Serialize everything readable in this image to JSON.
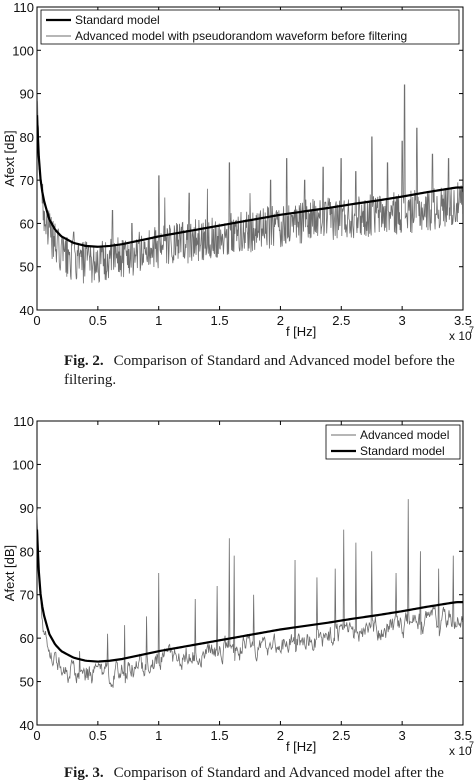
{
  "figures": [
    {
      "caption_label": "Fig. 2.",
      "caption_text": "Comparison of Standard and Advanced model before the filtering."
    },
    {
      "caption_label": "Fig. 3.",
      "caption_text": "Comparison of Standard and Advanced model after the"
    }
  ],
  "chart_data": [
    {
      "type": "line",
      "title": "",
      "xlabel": "f [Hz]",
      "ylabel": "Afext [dB]",
      "x_multiplier_label": "x 10",
      "x_multiplier_exponent": "7",
      "xlim": [
        0,
        3.5
      ],
      "ylim": [
        40,
        110
      ],
      "x_unit_scale": 10000000,
      "xticks": [
        "0",
        "0.5",
        "1",
        "1.5",
        "2",
        "2.5",
        "3",
        "3.5"
      ],
      "yticks": [
        "40",
        "50",
        "60",
        "70",
        "80",
        "90",
        "100",
        "110"
      ],
      "grid": false,
      "legend_position": "top",
      "series": [
        {
          "name": "Standard model",
          "color": "#000000",
          "style": "thick",
          "x": [
            0,
            0.02,
            0.05,
            0.1,
            0.15,
            0.2,
            0.3,
            0.4,
            0.5,
            0.6,
            0.7,
            0.8,
            1.0,
            1.2,
            1.4,
            1.6,
            1.8,
            2.0,
            2.2,
            2.4,
            2.6,
            2.8,
            3.0,
            3.2,
            3.4,
            3.45
          ],
          "y": [
            85,
            72,
            66,
            61,
            58.5,
            57,
            55.5,
            54.8,
            54.6,
            54.8,
            55.2,
            55.8,
            57,
            58,
            59,
            60,
            61,
            62,
            62.8,
            63.6,
            64.5,
            65.3,
            66.2,
            67.2,
            68.1,
            68.3
          ]
        },
        {
          "name": "Advanced model with pseudorandom waveform before filtering",
          "color": "#6e6e6e",
          "style": "noisy",
          "x": [
            0,
            0.02,
            0.05,
            0.1,
            0.15,
            0.2,
            0.3,
            0.4,
            0.5,
            0.6,
            0.7,
            0.8,
            1.0,
            1.2,
            1.4,
            1.6,
            1.8,
            2.0,
            2.2,
            2.4,
            2.6,
            2.8,
            3.0,
            3.2,
            3.4,
            3.45
          ],
          "y": [
            88,
            74,
            64,
            58,
            55,
            53,
            51.5,
            51,
            51,
            51.5,
            52.5,
            53,
            54.5,
            55.5,
            56.5,
            57.5,
            58.5,
            59.5,
            60.5,
            61,
            61.5,
            62,
            62.5,
            63,
            64,
            64.5
          ],
          "spikes": [
            [
              0.3,
              58
            ],
            [
              0.62,
              63
            ],
            [
              0.78,
              60
            ],
            [
              1.0,
              71
            ],
            [
              1.05,
              66
            ],
            [
              1.25,
              67
            ],
            [
              1.4,
              68
            ],
            [
              1.58,
              74
            ],
            [
              1.75,
              67
            ],
            [
              1.92,
              70
            ],
            [
              2.05,
              75
            ],
            [
              2.2,
              70
            ],
            [
              2.35,
              73
            ],
            [
              2.5,
              75
            ],
            [
              2.62,
              72
            ],
            [
              2.75,
              80
            ],
            [
              2.88,
              74
            ],
            [
              3.0,
              79
            ],
            [
              3.02,
              92
            ],
            [
              3.12,
              82
            ],
            [
              3.25,
              76
            ],
            [
              3.38,
              75
            ]
          ]
        }
      ]
    },
    {
      "type": "line",
      "title": "",
      "xlabel": "f [Hz]",
      "ylabel": "Afext [dB]",
      "x_multiplier_label": "x 10",
      "x_multiplier_exponent": "7",
      "xlim": [
        0,
        3.5
      ],
      "ylim": [
        40,
        110
      ],
      "x_unit_scale": 10000000,
      "xticks": [
        "0",
        "0.5",
        "1",
        "1.5",
        "2",
        "2.5",
        "3",
        "3.5"
      ],
      "yticks": [
        "40",
        "50",
        "60",
        "70",
        "80",
        "90",
        "100",
        "110"
      ],
      "grid": false,
      "legend_position": "top-right",
      "series": [
        {
          "name": "Advanced model",
          "color": "#6e6e6e",
          "style": "filtered",
          "x": [
            0,
            0.02,
            0.05,
            0.1,
            0.15,
            0.2,
            0.3,
            0.4,
            0.5,
            0.6,
            0.7,
            0.8,
            1.0,
            1.2,
            1.4,
            1.6,
            1.8,
            2.0,
            2.2,
            2.4,
            2.6,
            2.8,
            3.0,
            3.2,
            3.4,
            3.45
          ],
          "y": [
            90,
            73,
            64,
            58,
            55,
            53,
            52,
            51.5,
            51.5,
            52,
            52.5,
            53,
            55,
            56,
            57,
            57.5,
            58,
            58.5,
            59,
            60,
            61,
            62,
            63,
            63.5,
            64,
            65
          ],
          "spikes": [
            [
              0.35,
              57
            ],
            [
              0.58,
              61
            ],
            [
              0.72,
              63
            ],
            [
              0.9,
              65
            ],
            [
              1.0,
              75
            ],
            [
              1.3,
              69
            ],
            [
              1.48,
              72
            ],
            [
              1.58,
              83
            ],
            [
              1.62,
              79
            ],
            [
              1.78,
              70
            ],
            [
              2.12,
              78
            ],
            [
              2.3,
              74
            ],
            [
              2.45,
              76
            ],
            [
              2.52,
              85
            ],
            [
              2.62,
              82
            ],
            [
              2.75,
              80
            ],
            [
              2.95,
              75
            ],
            [
              3.05,
              92
            ],
            [
              3.15,
              80
            ],
            [
              3.3,
              76
            ],
            [
              3.42,
              79
            ]
          ]
        },
        {
          "name": "Standard model",
          "color": "#000000",
          "style": "thick",
          "x": [
            0,
            0.02,
            0.05,
            0.1,
            0.15,
            0.2,
            0.3,
            0.4,
            0.5,
            0.6,
            0.7,
            0.8,
            1.0,
            1.2,
            1.4,
            1.6,
            1.8,
            2.0,
            2.2,
            2.4,
            2.6,
            2.8,
            3.0,
            3.2,
            3.4,
            3.45
          ],
          "y": [
            85,
            72,
            66,
            61,
            58.5,
            57,
            55.5,
            54.8,
            54.6,
            54.8,
            55.2,
            55.8,
            57,
            58,
            59,
            60,
            61,
            62,
            62.8,
            63.6,
            64.5,
            65.3,
            66.2,
            67.2,
            68.1,
            68.3
          ]
        }
      ]
    }
  ]
}
